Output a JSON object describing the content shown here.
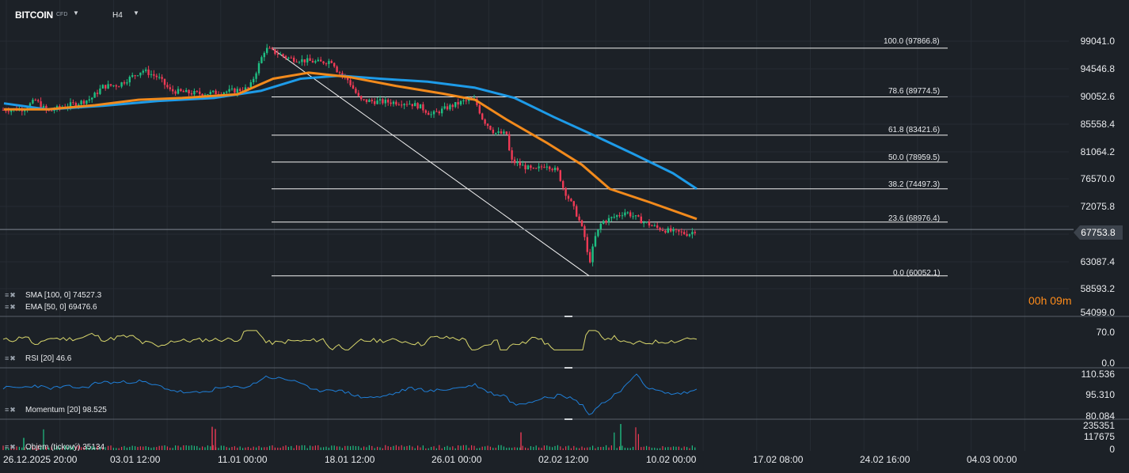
{
  "header": {
    "symbol": "BITCOIN",
    "symbol_type": "CFD",
    "timeframe": "H4"
  },
  "indicators": {
    "sma": "SMA [100,  0]  74527.3",
    "ema": "EMA [50,  0]  69476.6",
    "rsi": "RSI [20]  46.6",
    "momentum": "Momentum  [20]  98.525",
    "volume": "Objem (tickový)  35134"
  },
  "countdown": "00h 09m",
  "price_axis": [
    "99041.0",
    "94546.8",
    "90052.6",
    "85558.4",
    "81064.2",
    "76570.0",
    "72075.8",
    "63087.4",
    "58593.2",
    "54099.0"
  ],
  "current_price": "67753.8",
  "rsi_axis": [
    "70.0",
    "0.0"
  ],
  "momentum_axis": [
    "110.536",
    "95.310",
    "80.084"
  ],
  "volume_axis": [
    "235351",
    "117675",
    "0"
  ],
  "time_axis": [
    "26.12.2025  20:00",
    "03.01  12:00",
    "11.01  00:00",
    "18.01  12:00",
    "26.01  00:00",
    "02.02  12:00",
    "10.02  00:00",
    "17.02  08:00",
    "24.02  16:00",
    "04.03  00:00"
  ],
  "fibonacci": [
    "100.0 (97866.8)",
    "78.6 (89774.5)",
    "61.8 (83421.6)",
    "50.0 (78959.5)",
    "38.2 (74497.3)",
    "23.6 (68976.4)",
    "0.0 (60052.1)"
  ],
  "colors": {
    "background": "#1c2127",
    "up": "#1fbf83",
    "down": "#ee3a55",
    "sma": "#1e9be8",
    "ema": "#f28a1c",
    "rsi": "#d9d76c",
    "momentum": "#1f7fd8",
    "countdown": "#ff8c1a"
  },
  "chart_data": {
    "type": "candlestick",
    "fib_levels": [
      97866.8,
      89774.5,
      83421.6,
      78959.5,
      74497.3,
      68976.4,
      60052.1
    ],
    "close_path": [
      [
        0,
        87600
      ],
      [
        30,
        87800
      ],
      [
        45,
        89200
      ],
      [
        60,
        87300
      ],
      [
        80,
        88200
      ],
      [
        100,
        88800
      ],
      [
        115,
        89500
      ],
      [
        130,
        91500
      ],
      [
        150,
        91800
      ],
      [
        165,
        93000
      ],
      [
        180,
        94200
      ],
      [
        200,
        93000
      ],
      [
        215,
        90800
      ],
      [
        235,
        90500
      ],
      [
        255,
        90300
      ],
      [
        275,
        90500
      ],
      [
        295,
        90800
      ],
      [
        315,
        91200
      ],
      [
        325,
        94500
      ],
      [
        335,
        97800
      ],
      [
        345,
        97300
      ],
      [
        365,
        96200
      ],
      [
        385,
        95800
      ],
      [
        405,
        95500
      ],
      [
        420,
        95800
      ],
      [
        425,
        94300
      ],
      [
        440,
        92500
      ],
      [
        455,
        89200
      ],
      [
        475,
        89000
      ],
      [
        495,
        88900
      ],
      [
        515,
        88800
      ],
      [
        530,
        88200
      ],
      [
        545,
        86800
      ],
      [
        565,
        88000
      ],
      [
        585,
        89000
      ],
      [
        600,
        89200
      ],
      [
        610,
        86000
      ],
      [
        625,
        83800
      ],
      [
        640,
        83600
      ],
      [
        645,
        79200
      ],
      [
        660,
        78300
      ],
      [
        675,
        77500
      ],
      [
        690,
        78600
      ],
      [
        705,
        77300
      ],
      [
        712,
        74400
      ],
      [
        720,
        72500
      ],
      [
        730,
        69800
      ],
      [
        738,
        66800
      ],
      [
        744,
        62000
      ],
      [
        748,
        64200
      ],
      [
        752,
        66500
      ],
      [
        760,
        69000
      ],
      [
        770,
        69500
      ],
      [
        790,
        70700
      ],
      [
        810,
        69200
      ],
      [
        830,
        68000
      ],
      [
        845,
        67500
      ],
      [
        860,
        67200
      ],
      [
        870,
        67000
      ],
      [
        880,
        67750
      ]
    ],
    "sma100_path": [
      [
        5,
        88700
      ],
      [
        60,
        87700
      ],
      [
        130,
        88300
      ],
      [
        200,
        89100
      ],
      [
        270,
        89600
      ],
      [
        330,
        90800
      ],
      [
        380,
        92800
      ],
      [
        430,
        93300
      ],
      [
        480,
        92800
      ],
      [
        540,
        92300
      ],
      [
        600,
        91300
      ],
      [
        650,
        89600
      ],
      [
        700,
        86400
      ],
      [
        750,
        83400
      ],
      [
        800,
        80300
      ],
      [
        850,
        77100
      ],
      [
        880,
        74500
      ]
    ],
    "ema50_path": [
      [
        5,
        87700
      ],
      [
        60,
        87700
      ],
      [
        120,
        88400
      ],
      [
        175,
        89300
      ],
      [
        230,
        89600
      ],
      [
        300,
        90200
      ],
      [
        345,
        92800
      ],
      [
        390,
        93800
      ],
      [
        440,
        93100
      ],
      [
        500,
        91600
      ],
      [
        560,
        90300
      ],
      [
        600,
        89300
      ],
      [
        640,
        86000
      ],
      [
        690,
        82200
      ],
      [
        735,
        78500
      ],
      [
        770,
        74500
      ],
      [
        820,
        72300
      ],
      [
        880,
        69500
      ]
    ],
    "rsi_range": [
      0,
      100
    ],
    "momentum_range": [
      80.084,
      110.536
    ],
    "volume_range": [
      0,
      235351
    ]
  }
}
